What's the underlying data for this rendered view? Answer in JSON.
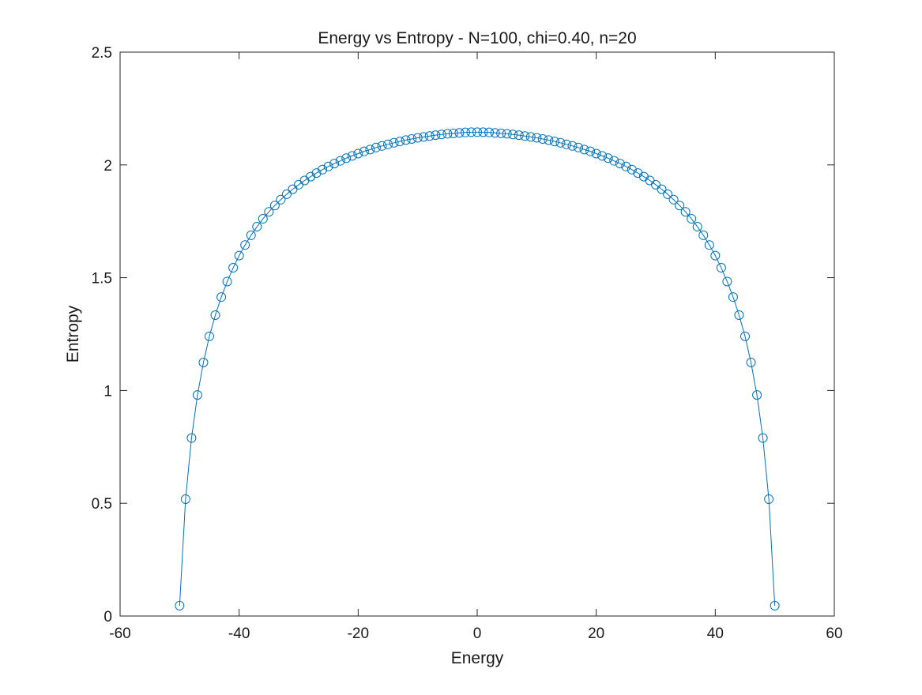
{
  "chart_data": {
    "type": "line",
    "title": "Energy vs Entropy - N=100, chi=0.40, n=20",
    "xlabel": "Energy",
    "ylabel": "Entropy",
    "xlim": [
      -60,
      60
    ],
    "ylim": [
      0,
      2.5
    ],
    "xticks": [
      -60,
      -40,
      -20,
      0,
      20,
      40,
      60
    ],
    "xtick_labels": [
      "-60",
      "-40",
      "-20",
      "0",
      "20",
      "40",
      "60"
    ],
    "yticks": [
      0,
      0.5,
      1,
      1.5,
      2,
      2.5
    ],
    "ytick_labels": [
      "0",
      "0.5",
      "1",
      "1.5",
      "2",
      "2.5"
    ],
    "grid": false,
    "marker": "circle",
    "color": "#0072BD",
    "series": [
      {
        "x": [
          -50,
          -49,
          -48,
          -47,
          -46,
          -45,
          -44,
          -43,
          -42,
          -41,
          -40,
          -39,
          -38,
          -37,
          -36,
          -35,
          -34,
          -33,
          -32,
          -31,
          -30,
          -29,
          -28,
          -27,
          -26,
          -25,
          -24,
          -23,
          -22,
          -21,
          -20,
          -19,
          -18,
          -17,
          -16,
          -15,
          -14,
          -13,
          -12,
          -11,
          -10,
          -9,
          -8,
          -7,
          -6,
          -5,
          -4,
          -3,
          -2,
          -1,
          0,
          1,
          2,
          3,
          4,
          5,
          6,
          7,
          8,
          9,
          10,
          11,
          12,
          13,
          14,
          15,
          16,
          17,
          18,
          19,
          20,
          21,
          22,
          23,
          24,
          25,
          26,
          27,
          28,
          29,
          30,
          31,
          32,
          33,
          34,
          35,
          36,
          37,
          38,
          39,
          40,
          41,
          42,
          43,
          44,
          45,
          46,
          47,
          48,
          49,
          50
        ],
        "y": [
          0.046,
          0.518,
          0.789,
          0.98,
          1.124,
          1.24,
          1.334,
          1.414,
          1.483,
          1.544,
          1.598,
          1.645,
          1.688,
          1.726,
          1.761,
          1.792,
          1.82,
          1.846,
          1.87,
          1.892,
          1.912,
          1.931,
          1.948,
          1.964,
          1.979,
          1.993,
          2.006,
          2.018,
          2.03,
          2.04,
          2.05,
          2.06,
          2.068,
          2.077,
          2.084,
          2.091,
          2.098,
          2.104,
          2.11,
          2.115,
          2.12,
          2.124,
          2.128,
          2.132,
          2.135,
          2.138,
          2.14,
          2.142,
          2.144,
          2.145,
          2.145,
          2.145,
          2.144,
          2.142,
          2.14,
          2.138,
          2.135,
          2.132,
          2.128,
          2.124,
          2.12,
          2.115,
          2.11,
          2.104,
          2.098,
          2.091,
          2.084,
          2.077,
          2.068,
          2.06,
          2.05,
          2.04,
          2.03,
          2.018,
          2.006,
          1.993,
          1.979,
          1.964,
          1.948,
          1.931,
          1.912,
          1.892,
          1.87,
          1.846,
          1.82,
          1.792,
          1.761,
          1.726,
          1.688,
          1.645,
          1.598,
          1.544,
          1.483,
          1.414,
          1.334,
          1.24,
          1.124,
          0.98,
          0.789,
          0.518,
          0.046
        ]
      }
    ]
  }
}
